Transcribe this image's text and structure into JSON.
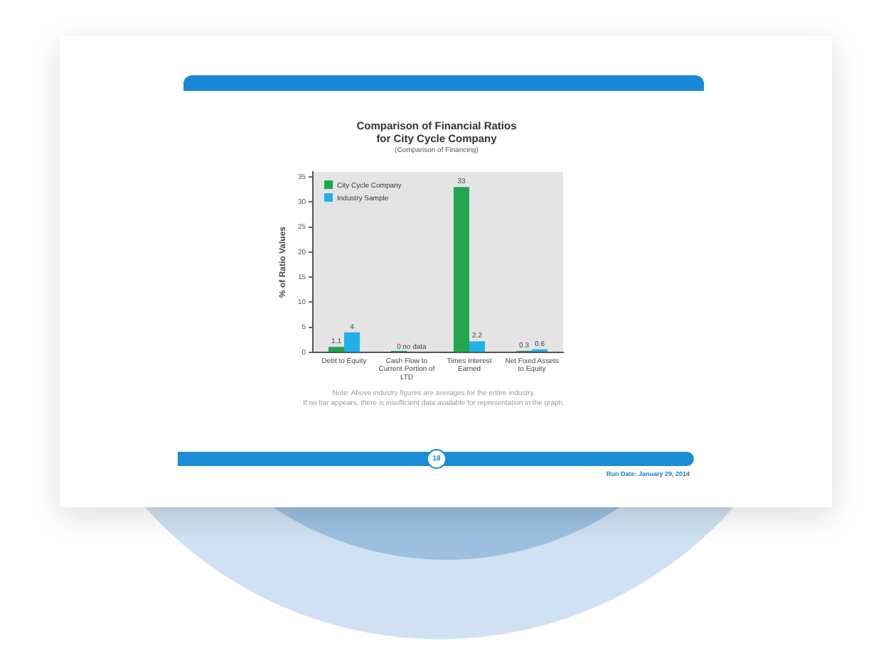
{
  "chart_data": {
    "type": "bar",
    "title": "Comparison of Financial Ratios for City Cycle Company",
    "subtitle": "(Comparison of Financing)",
    "ylabel": "% of Ratio Values",
    "categories": [
      "Debt to Equity",
      "Cash Flow to Current Portion of LTD",
      "Times Interest Earned",
      "Net Fixed Assets to Equity"
    ],
    "series": [
      {
        "name": "City Cycle Company",
        "color": "#1fa64f",
        "values": [
          1.1,
          0,
          33,
          0.3
        ],
        "value_labels": [
          "1.1",
          "0",
          "33",
          "0.3"
        ]
      },
      {
        "name": "Industry Sample",
        "color": "#1eb1ea",
        "values": [
          4,
          null,
          2.2,
          0.6
        ],
        "value_labels": [
          "4",
          "no data",
          "2.2",
          "0.6"
        ]
      }
    ],
    "ylim": [
      0,
      36
    ],
    "yticks": [
      0,
      5,
      10,
      15,
      20,
      25,
      30,
      35
    ],
    "legend": "top left",
    "annotations": [
      "Note: Above industry figures are averages for the entire industry.",
      "If no bar appears, there is insufficient data available for representation in the graph.",
      "18",
      "Run Date: January 29, 2014"
    ]
  }
}
